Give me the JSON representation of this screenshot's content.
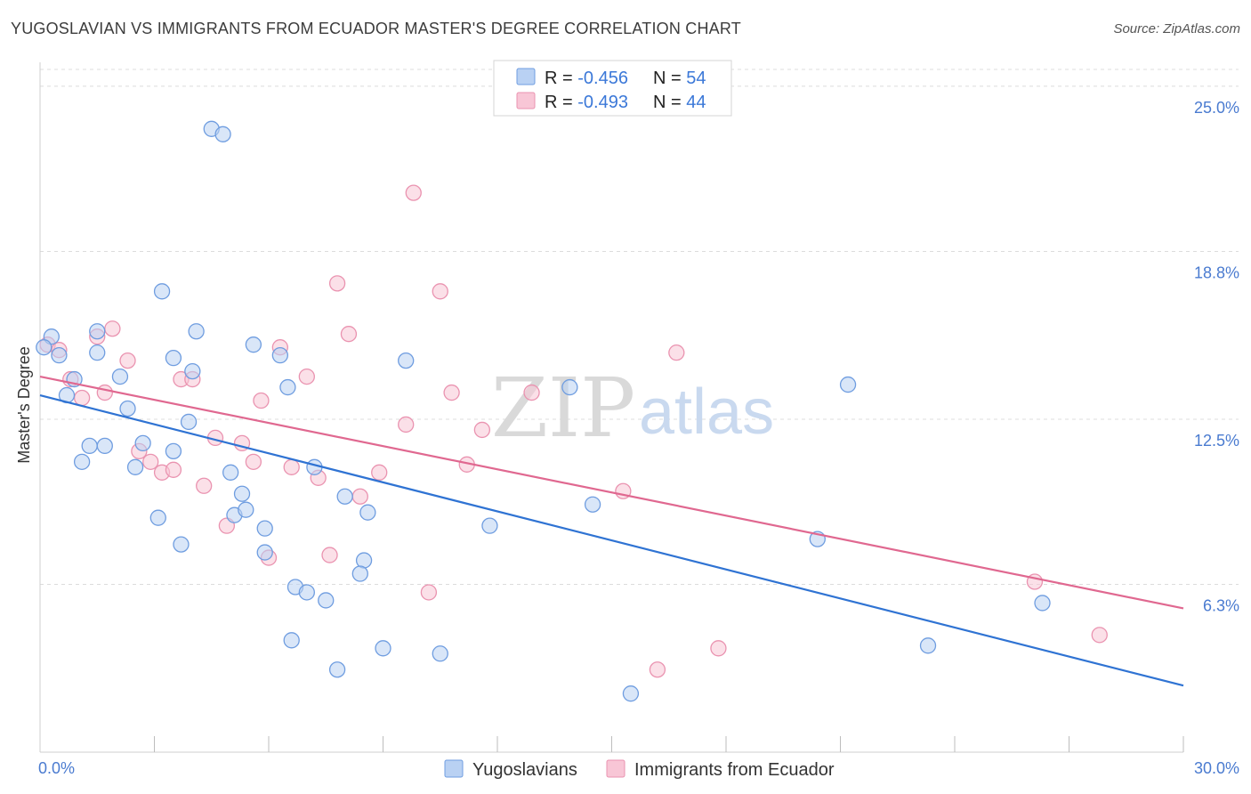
{
  "title": "YUGOSLAVIAN VS IMMIGRANTS FROM ECUADOR MASTER'S DEGREE CORRELATION CHART",
  "source": "Source: ZipAtlas.com",
  "watermark": {
    "part1": "ZIP",
    "part2": "atlas"
  },
  "colors": {
    "blue_fill": "#b9d1f3",
    "blue_stroke": "#6f9de0",
    "blue_line": "#2f73d3",
    "pink_fill": "#f8c6d6",
    "pink_stroke": "#ea93b0",
    "pink_line": "#e06890",
    "accent_text": "#3b78d8"
  },
  "legend_top": [
    {
      "r_label": "R = ",
      "r_value": "-0.456",
      "n_label": "N = ",
      "n_value": "54"
    },
    {
      "r_label": "R = ",
      "r_value": "-0.493",
      "n_label": "N = ",
      "n_value": "44"
    }
  ],
  "legend_bottom": [
    "Yugoslavians",
    "Immigrants from Ecuador"
  ],
  "chart_data": {
    "type": "scatter",
    "xlabel": "",
    "ylabel": "Master's Degree",
    "xlim": [
      0,
      30
    ],
    "ylim": [
      0,
      25.9
    ],
    "x_tick_labels": [
      "0.0%",
      "30.0%"
    ],
    "y_ticks": [
      6.3,
      12.5,
      18.8,
      25.0
    ],
    "y_tick_labels": [
      "6.3%",
      "12.5%",
      "18.8%",
      "25.0%"
    ],
    "grid": "horizontal dashed",
    "legend_placement": "top-center and bottom",
    "series": [
      {
        "name": "Yugoslavians",
        "trend": {
          "x": [
            0,
            30
          ],
          "y": [
            13.4,
            2.5
          ]
        },
        "points": [
          [
            0.3,
            15.6
          ],
          [
            0.5,
            14.9
          ],
          [
            0.9,
            14.0
          ],
          [
            0.7,
            13.4
          ],
          [
            1.5,
            15.0
          ],
          [
            1.5,
            15.8
          ],
          [
            2.1,
            14.1
          ],
          [
            2.3,
            12.9
          ],
          [
            1.3,
            11.5
          ],
          [
            1.7,
            11.5
          ],
          [
            1.1,
            10.9
          ],
          [
            2.7,
            11.6
          ],
          [
            2.5,
            10.7
          ],
          [
            3.5,
            14.8
          ],
          [
            3.2,
            17.3
          ],
          [
            4.1,
            15.8
          ],
          [
            4.0,
            14.3
          ],
          [
            3.5,
            11.3
          ],
          [
            3.9,
            12.4
          ],
          [
            3.1,
            8.8
          ],
          [
            3.7,
            7.8
          ],
          [
            4.5,
            23.4
          ],
          [
            4.8,
            23.2
          ],
          [
            5.6,
            15.3
          ],
          [
            6.3,
            14.9
          ],
          [
            6.5,
            13.7
          ],
          [
            5.0,
            10.5
          ],
          [
            5.3,
            9.7
          ],
          [
            5.1,
            8.9
          ],
          [
            5.4,
            9.1
          ],
          [
            5.9,
            8.4
          ],
          [
            5.9,
            7.5
          ],
          [
            7.2,
            10.7
          ],
          [
            6.7,
            6.2
          ],
          [
            7.0,
            6.0
          ],
          [
            7.5,
            5.7
          ],
          [
            8.0,
            9.6
          ],
          [
            8.6,
            9.0
          ],
          [
            8.5,
            7.2
          ],
          [
            8.4,
            6.7
          ],
          [
            6.6,
            4.2
          ],
          [
            7.8,
            3.1
          ],
          [
            9.6,
            14.7
          ],
          [
            9.0,
            3.9
          ],
          [
            10.5,
            3.7
          ],
          [
            11.8,
            8.5
          ],
          [
            13.9,
            13.7
          ],
          [
            14.5,
            9.3
          ],
          [
            15.5,
            2.2
          ],
          [
            20.4,
            8.0
          ],
          [
            21.2,
            13.8
          ],
          [
            23.3,
            4.0
          ],
          [
            26.3,
            5.6
          ],
          [
            0.1,
            15.2
          ]
        ]
      },
      {
        "name": "Immigrants from Ecuador",
        "trend": {
          "x": [
            0,
            30
          ],
          "y": [
            14.1,
            5.4
          ]
        },
        "points": [
          [
            0.2,
            15.3
          ],
          [
            0.5,
            15.1
          ],
          [
            0.8,
            14.0
          ],
          [
            1.1,
            13.3
          ],
          [
            1.5,
            15.6
          ],
          [
            1.7,
            13.5
          ],
          [
            1.9,
            15.9
          ],
          [
            2.3,
            14.7
          ],
          [
            2.6,
            11.3
          ],
          [
            2.9,
            10.9
          ],
          [
            3.2,
            10.5
          ],
          [
            3.5,
            10.6
          ],
          [
            3.7,
            14.0
          ],
          [
            4.0,
            14.0
          ],
          [
            4.3,
            10.0
          ],
          [
            4.6,
            11.8
          ],
          [
            4.9,
            8.5
          ],
          [
            5.3,
            11.6
          ],
          [
            5.6,
            10.9
          ],
          [
            5.8,
            13.2
          ],
          [
            6.0,
            7.3
          ],
          [
            6.3,
            15.2
          ],
          [
            6.6,
            10.7
          ],
          [
            7.0,
            14.1
          ],
          [
            7.3,
            10.3
          ],
          [
            7.6,
            7.4
          ],
          [
            7.8,
            17.6
          ],
          [
            8.1,
            15.7
          ],
          [
            8.4,
            9.6
          ],
          [
            8.9,
            10.5
          ],
          [
            9.6,
            12.3
          ],
          [
            9.8,
            21.0
          ],
          [
            10.2,
            6.0
          ],
          [
            10.5,
            17.3
          ],
          [
            10.8,
            13.5
          ],
          [
            11.2,
            10.8
          ],
          [
            11.6,
            12.1
          ],
          [
            12.9,
            13.5
          ],
          [
            15.3,
            9.8
          ],
          [
            16.2,
            3.1
          ],
          [
            16.7,
            15.0
          ],
          [
            17.8,
            3.9
          ],
          [
            26.1,
            6.4
          ],
          [
            27.8,
            4.4
          ]
        ]
      }
    ]
  }
}
